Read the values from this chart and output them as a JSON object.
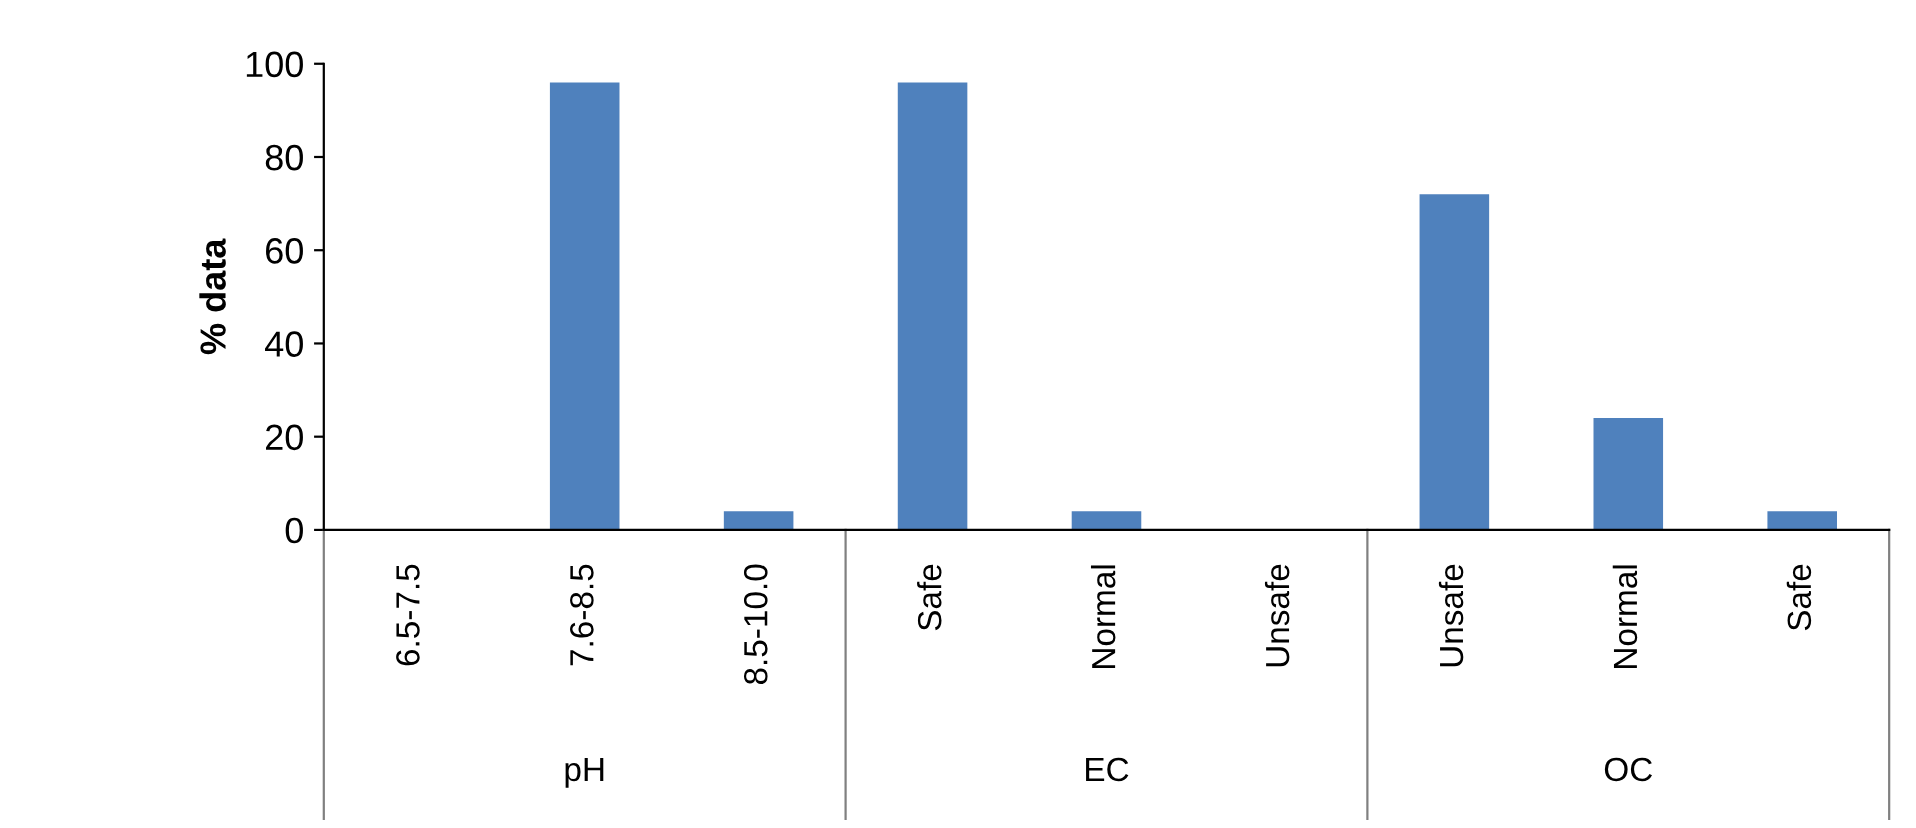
{
  "chart_data": {
    "type": "bar",
    "ylabel": "% data",
    "categories": [
      "6.5-7.5",
      "7.6-8.5",
      "8.5-10.0",
      "Safe",
      "Normal",
      "Unsafe",
      "Unsafe",
      "Normal",
      "Safe"
    ],
    "values": [
      0,
      96,
      4,
      96,
      4,
      0,
      72,
      24,
      4
    ],
    "color": "#4f81bd",
    "ylim": [
      0,
      100
    ],
    "yticks": [
      0,
      20,
      40,
      60,
      80,
      100
    ],
    "grid": false,
    "legend": false,
    "annotations": [
      "pH",
      "EC",
      "OC"
    ]
  }
}
